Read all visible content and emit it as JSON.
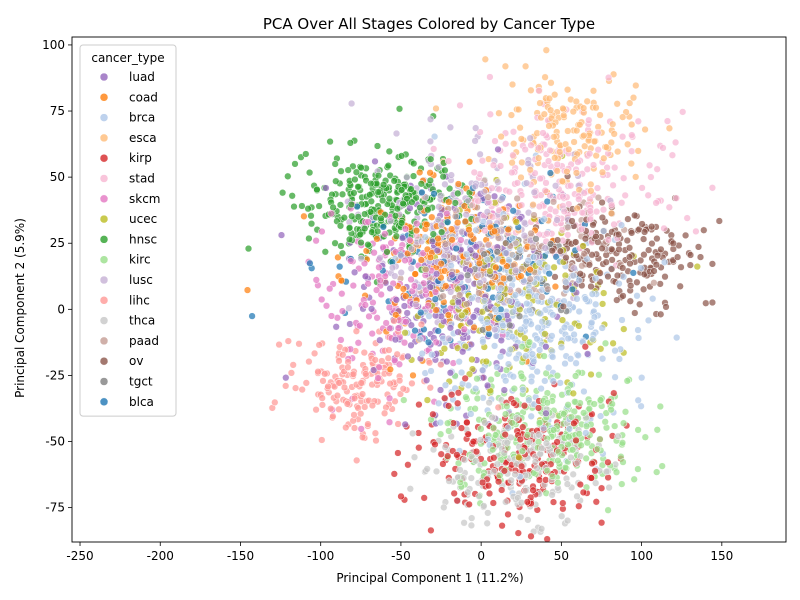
{
  "chart_data": {
    "type": "scatter",
    "title": "PCA Over All Stages Colored by Cancer Type",
    "xlabel": "Principal Component 1 (11.2%)",
    "ylabel": "Principal Component 2 (5.9%)",
    "xlim": [
      -255,
      190
    ],
    "ylim": [
      -88,
      103
    ],
    "xticks": [
      -250,
      -200,
      -150,
      -100,
      -50,
      0,
      50,
      100,
      150
    ],
    "yticks": [
      -75,
      -50,
      -25,
      0,
      25,
      50,
      75,
      100
    ],
    "grid": false,
    "legend": {
      "title": "cancer_type",
      "placement": "upper-left",
      "entries": [
        "luad",
        "coad",
        "brca",
        "esca",
        "kirp",
        "stad",
        "skcm",
        "ucec",
        "hnsc",
        "kirc",
        "lusc",
        "lihc",
        "thca",
        "paad",
        "ov",
        "tgct",
        "blca"
      ]
    },
    "series": [
      {
        "name": "luad",
        "color": "#9467bd",
        "center": [
          -20,
          5
        ],
        "spread": [
          30,
          20
        ],
        "count": 220
      },
      {
        "name": "coad",
        "color": "#ff7f0e",
        "center": [
          -25,
          20
        ],
        "spread": [
          30,
          15
        ],
        "count": 200
      },
      {
        "name": "brca",
        "color": "#aec7e8",
        "center": [
          25,
          -5
        ],
        "spread": [
          35,
          20
        ],
        "count": 380
      },
      {
        "name": "esca",
        "color": "#ffbb78",
        "center": [
          55,
          65
        ],
        "spread": [
          25,
          12
        ],
        "count": 160
      },
      {
        "name": "kirp",
        "color": "#d62728",
        "center": [
          25,
          -55
        ],
        "spread": [
          30,
          12
        ],
        "count": 230
      },
      {
        "name": "stad",
        "color": "#f7b6d2",
        "center": [
          50,
          45
        ],
        "spread": [
          30,
          15
        ],
        "count": 240
      },
      {
        "name": "skcm",
        "color": "#e377c2",
        "center": [
          -55,
          5
        ],
        "spread": [
          25,
          18
        ],
        "count": 160
      },
      {
        "name": "ucec",
        "color": "#bcbd22",
        "center": [
          20,
          0
        ],
        "spread": [
          30,
          20
        ],
        "count": 150
      },
      {
        "name": "hnsc",
        "color": "#2ca02c",
        "center": [
          -60,
          40
        ],
        "spread": [
          25,
          10
        ],
        "count": 300
      },
      {
        "name": "kirc",
        "color": "#98df8a",
        "center": [
          40,
          -45
        ],
        "spread": [
          30,
          12
        ],
        "count": 280
      },
      {
        "name": "lusc",
        "color": "#c5b0d5",
        "center": [
          -10,
          30
        ],
        "spread": [
          30,
          15
        ],
        "count": 230
      },
      {
        "name": "lihc",
        "color": "#ff9896",
        "center": [
          -75,
          -28
        ],
        "spread": [
          20,
          10
        ],
        "count": 170
      },
      {
        "name": "thca",
        "color": "#c7c7c7",
        "center": [
          20,
          -60
        ],
        "spread": [
          30,
          10
        ],
        "count": 200
      },
      {
        "name": "paad",
        "color": "#c49c94",
        "center": [
          20,
          20
        ],
        "spread": [
          30,
          12
        ],
        "count": 130
      },
      {
        "name": "ov",
        "color": "#8c564b",
        "center": [
          85,
          20
        ],
        "spread": [
          25,
          10
        ],
        "count": 200
      },
      {
        "name": "tgct",
        "color": "#7f7f7f",
        "center": [
          10,
          10
        ],
        "spread": [
          20,
          10
        ],
        "count": 50
      },
      {
        "name": "blca",
        "color": "#1f77b4",
        "center": [
          -10,
          20
        ],
        "spread": [
          40,
          15
        ],
        "count": 110
      }
    ]
  }
}
